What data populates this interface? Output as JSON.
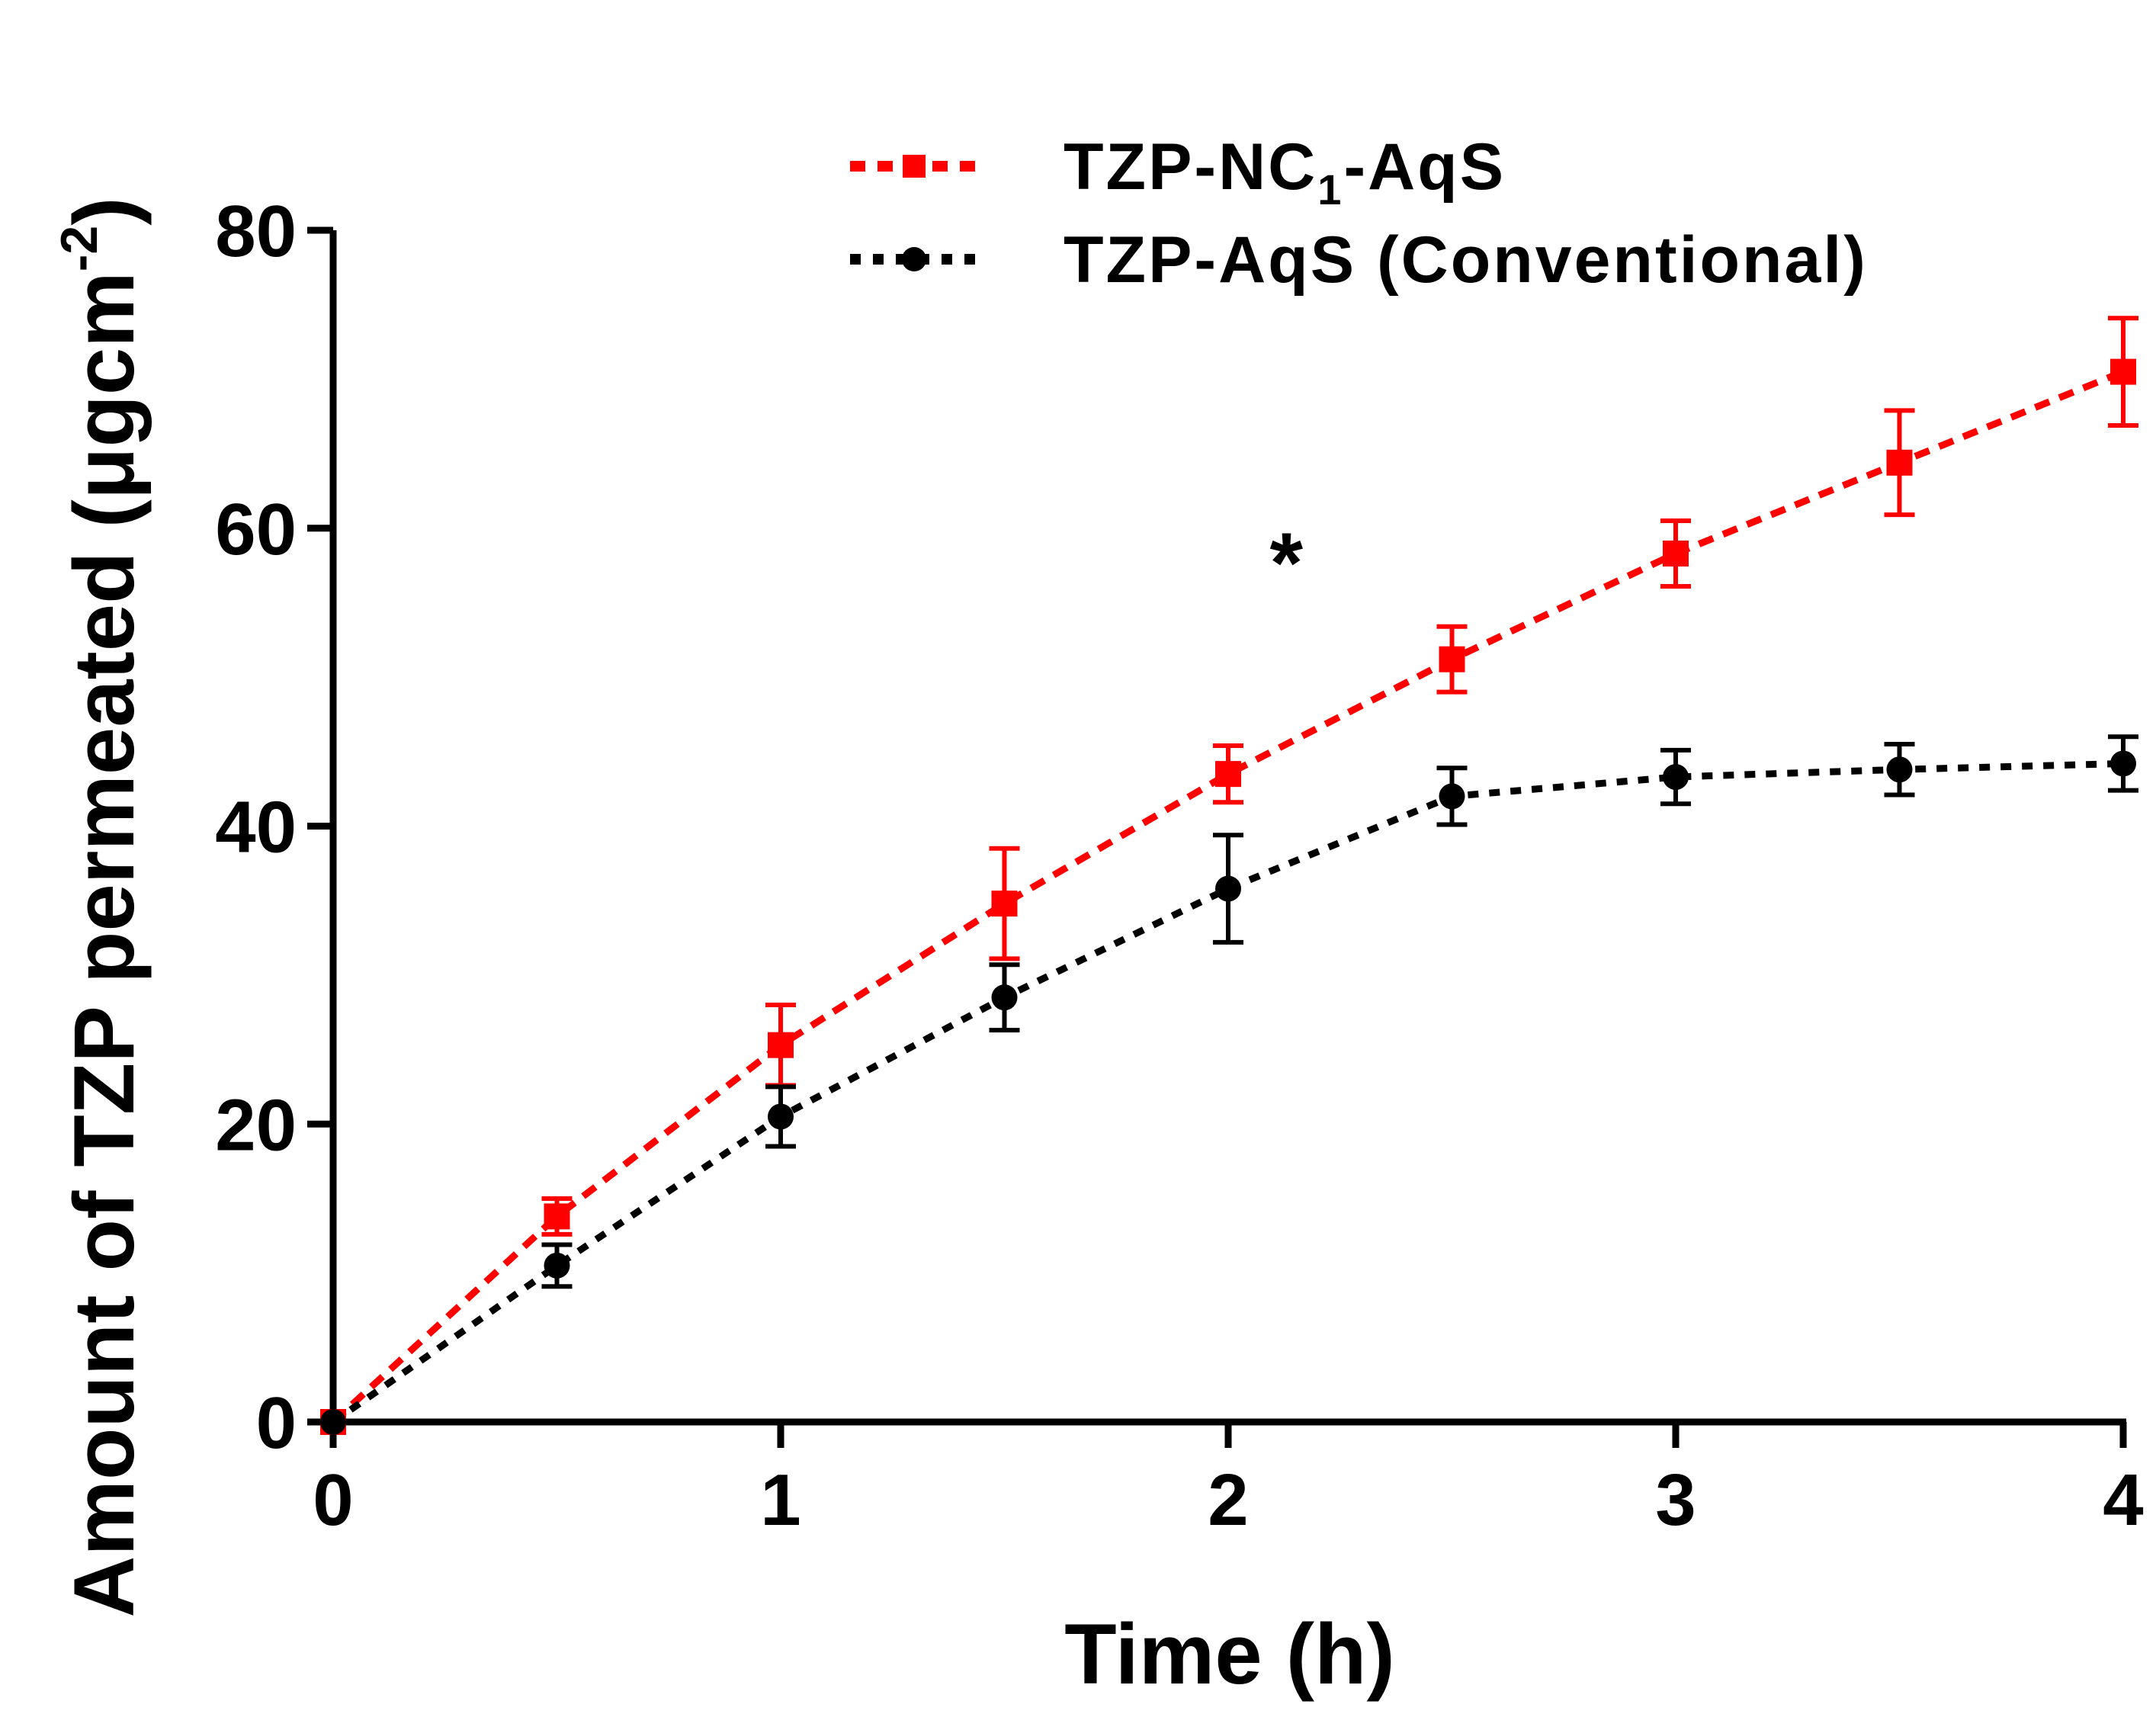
{
  "chart_data": {
    "type": "line",
    "title": "",
    "xlabel": "Time (h)",
    "ylabel_main": "Amount of TZP permeated (μgcm",
    "ylabel_sup": "-2",
    "ylabel_close": ")",
    "xlim": [
      0,
      4
    ],
    "ylim": [
      0,
      80
    ],
    "xticks": [
      "0",
      "1",
      "2",
      "3",
      "4"
    ],
    "yticks": [
      "0",
      "20",
      "40",
      "60",
      "80"
    ],
    "annotation": "*",
    "annotation_at": {
      "x": 2.13,
      "y": 58.5
    },
    "legend_position": "top",
    "series": [
      {
        "name": "TZP-NC1-AqS",
        "legend_main": "TZP-NC",
        "legend_sub": "1",
        "legend_tail": "-AqS",
        "color": "#ff0000",
        "marker": "square",
        "x": [
          0,
          0.5,
          1,
          1.5,
          2,
          2.5,
          3,
          3.5,
          4
        ],
        "y": [
          0,
          13.8,
          25.3,
          34.8,
          43.5,
          51.2,
          58.3,
          64.4,
          70.5
        ],
        "err": [
          0,
          1.2,
          2.7,
          3.7,
          1.9,
          2.2,
          2.2,
          3.5,
          3.6
        ]
      },
      {
        "name": "TZP-AqS (Conventional)",
        "legend_main": "TZP-AqS (Conventional)",
        "legend_sub": "",
        "legend_tail": "",
        "color": "#000000",
        "marker": "circle",
        "x": [
          0,
          0.5,
          1,
          1.5,
          2,
          2.5,
          3,
          3.5,
          4
        ],
        "y": [
          0,
          10.5,
          20.5,
          28.5,
          35.8,
          42.0,
          43.3,
          43.8,
          44.2
        ],
        "err": [
          0,
          1.4,
          2.0,
          2.2,
          3.6,
          1.9,
          1.8,
          1.7,
          1.8
        ]
      }
    ]
  }
}
